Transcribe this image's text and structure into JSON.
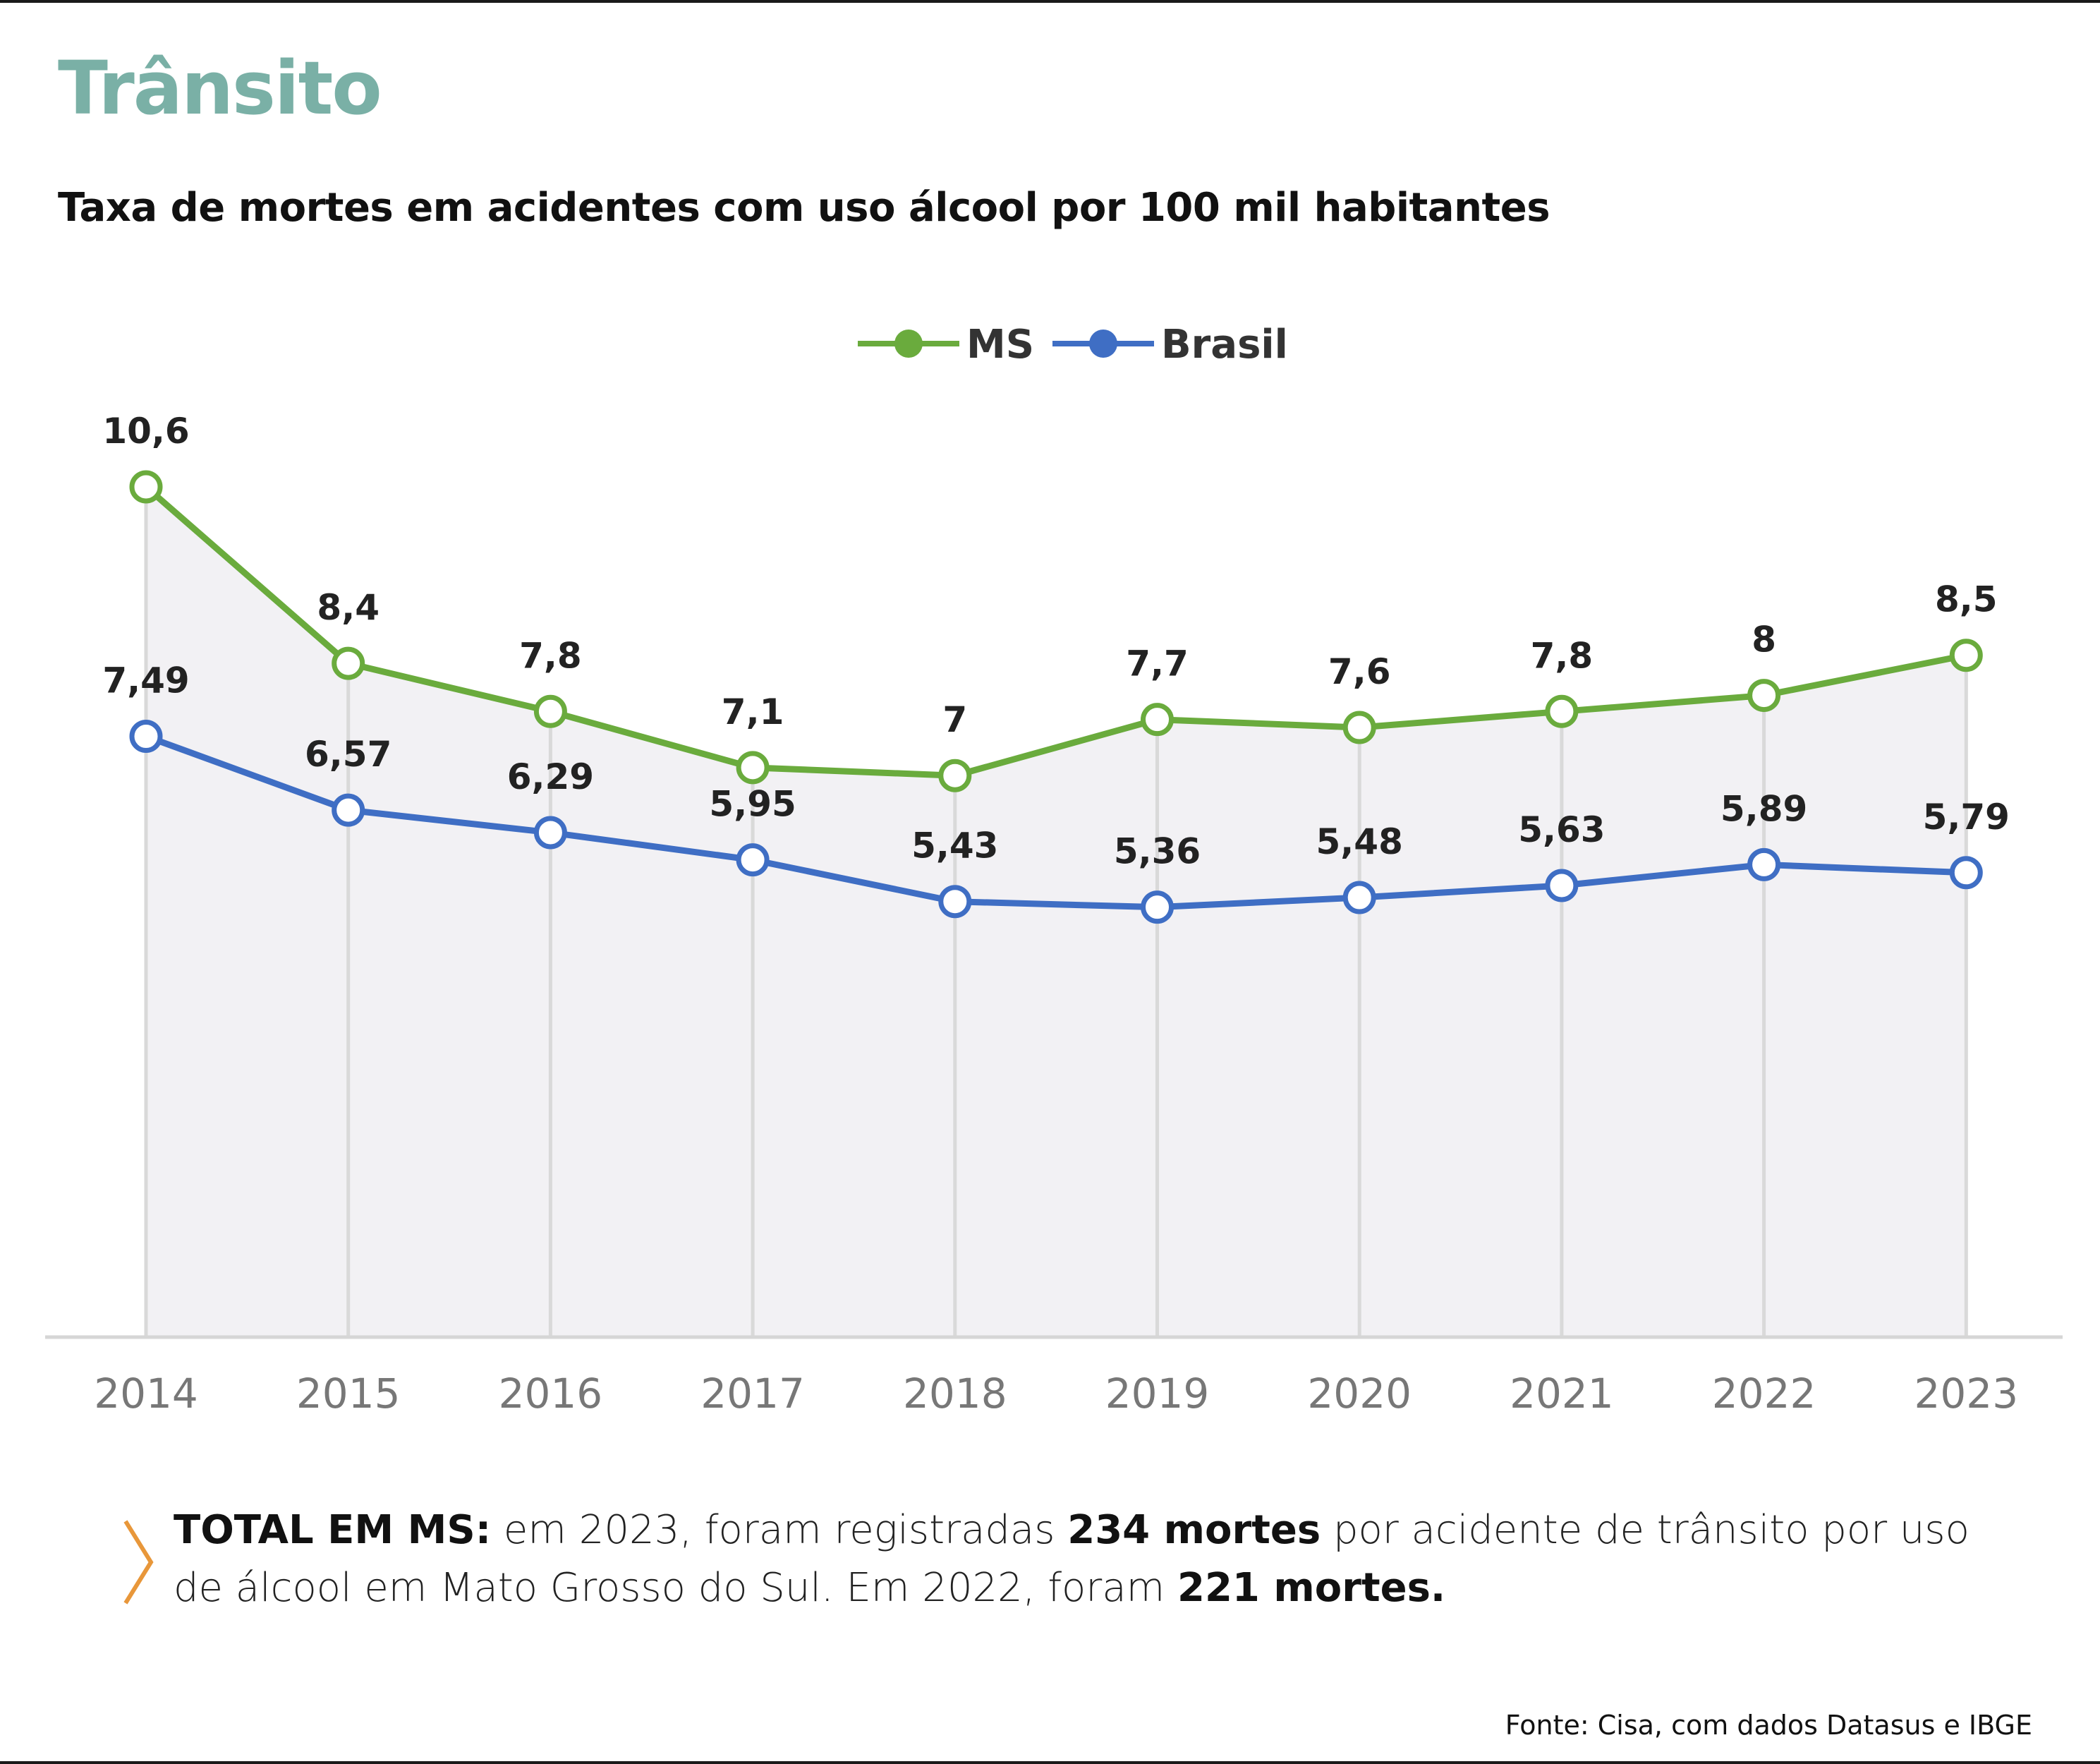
{
  "title": "Trânsito",
  "subtitle": "Taxa de mortes em acidentes com uso álcool por 100 mil habitantes",
  "colors": {
    "ms": "#6aab3d",
    "brasil": "#3f6ec4",
    "title": "#7ab0a6",
    "chevron": "#e8973a",
    "area": "#f2f1f4",
    "grid": "#d9d9d9"
  },
  "chart_data": {
    "type": "line",
    "title": "Taxa de mortes em acidentes com uso álcool por 100 mil habitantes",
    "xlabel": "",
    "ylabel": "",
    "ylim": [
      0,
      10.6
    ],
    "legend_position": "top-center",
    "grid": false,
    "categories": [
      "2014",
      "2015",
      "2016",
      "2017",
      "2018",
      "2019",
      "2020",
      "2021",
      "2022",
      "2023"
    ],
    "series": [
      {
        "name": "MS",
        "values": [
          10.6,
          8.4,
          7.8,
          7.1,
          7,
          7.7,
          7.6,
          7.8,
          8,
          8.5
        ],
        "labels": [
          "10,6",
          "8,4",
          "7,8",
          "7,1",
          "7",
          "7,7",
          "7,6",
          "7,8",
          "8",
          "8,5"
        ]
      },
      {
        "name": "Brasil",
        "values": [
          7.49,
          6.57,
          6.29,
          5.95,
          5.43,
          5.36,
          5.48,
          5.63,
          5.89,
          5.79
        ],
        "labels": [
          "7,49",
          "6,57",
          "6,29",
          "5,95",
          "5,43",
          "5,36",
          "5,48",
          "5,63",
          "5,89",
          "5,79"
        ]
      }
    ]
  },
  "note": {
    "lead": "TOTAL EM MS:",
    "t1": " em 2023, foram registradas ",
    "b1": "234 mortes",
    "t2": " por acidente de trânsito por uso de álcool em Mato Grosso do Sul. Em 2022, foram ",
    "b2": "221 mortes."
  },
  "source": "Fonte: Cisa, com dados Datasus e IBGE"
}
